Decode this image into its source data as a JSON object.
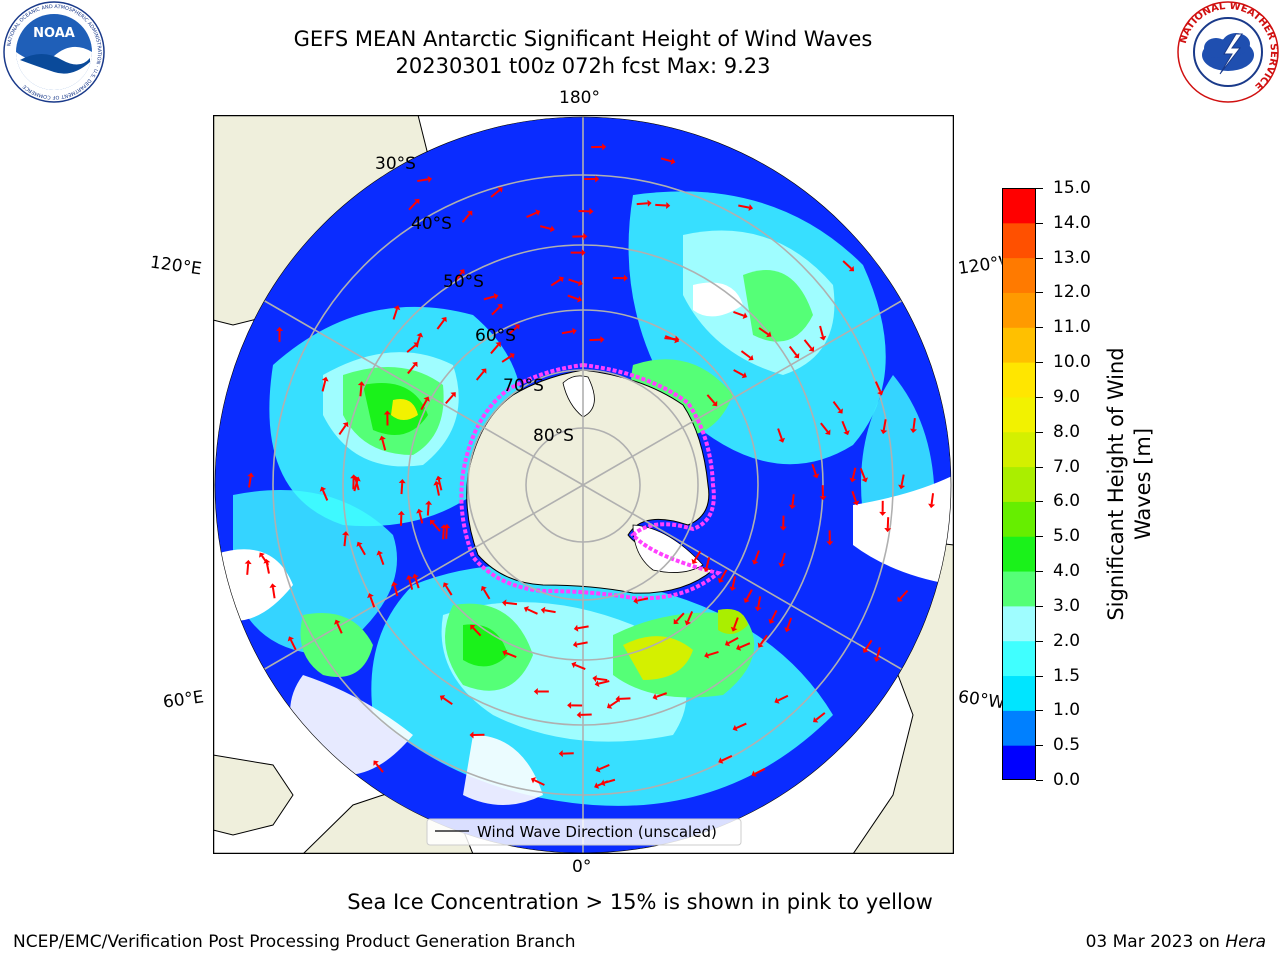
{
  "title": {
    "line1": "GEFS MEAN Antarctic Significant Height of Wind Waves",
    "line2": "20230301 t00z 072h fcst   Max: 9.23"
  },
  "logos": {
    "left": {
      "name": "noaa-logo",
      "text": "NOAA",
      "ring_text": "NATIONAL OCEANIC AND ATMOSPHERIC ADMINISTRATION · U.S. DEPARTMENT OF COMMERCE"
    },
    "right": {
      "name": "nws-logo",
      "ring_text": "NATIONAL WEATHER SERVICE"
    }
  },
  "map": {
    "projection": "south-polar-stereographic",
    "longitude_labels": {
      "top": "180°",
      "bottom": "0°",
      "upper_left": "120°E",
      "upper_right": "120°W",
      "lower_left": "60°E",
      "lower_right": "60°W"
    },
    "latitude_labels": [
      "30°S",
      "40°S",
      "50°S",
      "60°S",
      "70°S",
      "80°S"
    ],
    "legend_label": "Wind Wave Direction (unscaled)",
    "arrow_color": "#ff0000",
    "land_color": "#efefdc",
    "grid_color": "#b0b0b0",
    "ice_edge_color": "#ff40ff"
  },
  "colorbar": {
    "label_line1": "Significant Height of Wind",
    "label_line2": "Waves [m]",
    "ticks": [
      "0.0",
      "0.5",
      "1.0",
      "1.5",
      "2.0",
      "3.0",
      "4.0",
      "5.0",
      "6.0",
      "7.0",
      "8.0",
      "9.0",
      "10.0",
      "11.0",
      "12.0",
      "13.0",
      "14.0",
      "15.0"
    ],
    "colors": [
      "#0000ff",
      "#0080ff",
      "#00e5ff",
      "#40ffff",
      "#9ffdff",
      "#55ff77",
      "#1af21a",
      "#66ee00",
      "#aaee00",
      "#d4f000",
      "#f2f200",
      "#ffe600",
      "#ffc000",
      "#ff9a00",
      "#ff7a00",
      "#ff5000",
      "#ff0000"
    ]
  },
  "ice_note": "Sea Ice Concentration > 15% is shown in pink to yellow",
  "footer": {
    "left": "NCEP/EMC/Verification Post Processing Product Generation Branch",
    "right_date": "03 Mar 2023 on ",
    "right_machine": "Hera"
  }
}
